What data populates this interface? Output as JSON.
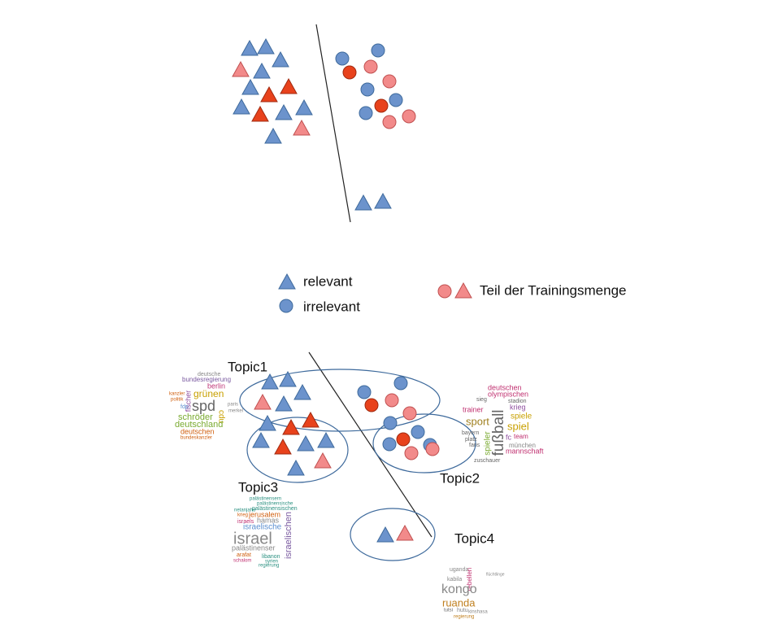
{
  "legend": {
    "relevant": "relevant",
    "irrelevant": "irrelevant",
    "training": "Teil der Trainingsmenge"
  },
  "topics": [
    {
      "label": "Topic1",
      "words": [
        "deutsche",
        "bundesregierung",
        "berlin",
        "grünen",
        "kanzler",
        "politik",
        "fischer",
        "fdp",
        "spd",
        "paris",
        "merkel",
        "cdu",
        "schröder",
        "deutschland",
        "deutschen",
        "bundeskanzler"
      ]
    },
    {
      "label": "Topic2",
      "words": [
        "deutschen",
        "olympischen",
        "sieg",
        "stadion",
        "trainer",
        "krieg",
        "sport",
        "spiele",
        "fußball",
        "spiel",
        "bayern",
        "fc",
        "team",
        "platz",
        "fans",
        "spieler",
        "münchen",
        "mannschaft",
        "zuschauer"
      ]
    },
    {
      "label": "Topic3",
      "words": [
        "palästinensern",
        "palästinensische",
        "netanjahu",
        "palästinensischen",
        "krieg",
        "jerusalem",
        "israels",
        "hamas",
        "israelische",
        "israel",
        "israelischen",
        "palästinenser",
        "arafat",
        "libanon",
        "schalom",
        "syrien",
        "regierung"
      ]
    },
    {
      "label": "Topic4",
      "words": [
        "uganda",
        "kabila",
        "rebellen",
        "kongo",
        "ruanda",
        "hutu",
        "tutsi",
        "kinshasa",
        "regierung",
        "flüchtlinge"
      ]
    }
  ]
}
